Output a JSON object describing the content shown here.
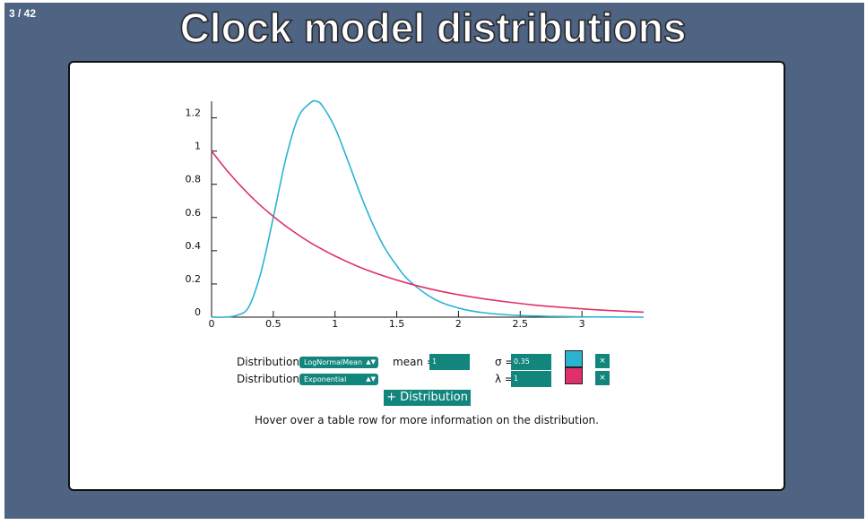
{
  "slide": {
    "counter": "3 / 42",
    "title": "Clock model distributions"
  },
  "chart_data": {
    "type": "line",
    "title": "",
    "xlabel": "",
    "ylabel": "",
    "xlim": [
      0,
      3.5
    ],
    "ylim": [
      0,
      1.3
    ],
    "x_ticks": [
      "0",
      "0.5",
      "1",
      "1.5",
      "2",
      "2.5",
      "3"
    ],
    "y_ticks": [
      "0",
      "0.2",
      "0.4",
      "0.6",
      "0.8",
      "1",
      "1.2"
    ],
    "series": [
      {
        "color": "#2bb3d1",
        "x": [
          0,
          0.1,
          0.2,
          0.3,
          0.4,
          0.5,
          0.6,
          0.7,
          0.8,
          0.85,
          0.9,
          1.0,
          1.1,
          1.2,
          1.3,
          1.4,
          1.5,
          1.6,
          1.8,
          2.0,
          2.2,
          2.5,
          3.0,
          3.5
        ],
        "y": [
          0,
          0.0,
          0.01,
          0.06,
          0.27,
          0.6,
          0.95,
          1.2,
          1.29,
          1.3,
          1.27,
          1.14,
          0.95,
          0.75,
          0.57,
          0.42,
          0.31,
          0.22,
          0.11,
          0.055,
          0.027,
          0.01,
          0.002,
          0.0
        ]
      },
      {
        "color": "#e0306a",
        "x": [
          0,
          0.1,
          0.2,
          0.3,
          0.4,
          0.5,
          0.6,
          0.7,
          0.8,
          0.9,
          1.0,
          1.2,
          1.4,
          1.6,
          1.8,
          2.0,
          2.2,
          2.4,
          2.6,
          2.8,
          3.0,
          3.2,
          3.5
        ],
        "y": [
          1.0,
          0.905,
          0.819,
          0.741,
          0.67,
          0.607,
          0.549,
          0.497,
          0.449,
          0.407,
          0.368,
          0.301,
          0.247,
          0.202,
          0.165,
          0.135,
          0.111,
          0.091,
          0.074,
          0.061,
          0.05,
          0.041,
          0.03
        ]
      }
    ]
  },
  "controls": {
    "rows": [
      {
        "label": "Distribution:",
        "selected": "LogNormalMean",
        "param1_label": "mean =",
        "param1_value": "1",
        "param2_label": "σ =",
        "param2_value": "0.35",
        "color": "#2bb3d1",
        "remove": "×"
      },
      {
        "label": "Distribution:",
        "selected": "Exponential",
        "param2_label": "λ =",
        "param2_value": "1",
        "color": "#e0306a",
        "remove": "×"
      }
    ],
    "add_button": "+ Distribution",
    "hint": "Hover over a table row for more information on the distribution."
  }
}
